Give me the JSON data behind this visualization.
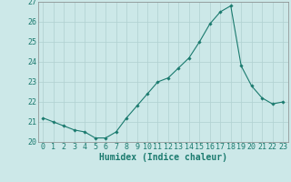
{
  "x": [
    0,
    1,
    2,
    3,
    4,
    5,
    6,
    7,
    8,
    9,
    10,
    11,
    12,
    13,
    14,
    15,
    16,
    17,
    18,
    19,
    20,
    21,
    22,
    23
  ],
  "y": [
    21.2,
    21.0,
    20.8,
    20.6,
    20.5,
    20.2,
    20.2,
    20.5,
    21.2,
    21.8,
    22.4,
    23.0,
    23.2,
    23.7,
    24.2,
    25.0,
    25.9,
    26.5,
    26.8,
    23.8,
    22.8,
    22.2,
    21.9,
    22.0
  ],
  "xlabel": "Humidex (Indice chaleur)",
  "ylim": [
    20,
    27
  ],
  "xlim": [
    -0.5,
    23.5
  ],
  "yticks": [
    20,
    21,
    22,
    23,
    24,
    25,
    26,
    27
  ],
  "xticks": [
    0,
    1,
    2,
    3,
    4,
    5,
    6,
    7,
    8,
    9,
    10,
    11,
    12,
    13,
    14,
    15,
    16,
    17,
    18,
    19,
    20,
    21,
    22,
    23
  ],
  "line_color": "#1a7a6e",
  "marker": "D",
  "marker_size": 1.8,
  "bg_color": "#cce8e8",
  "grid_color": "#b0d0d0",
  "xlabel_fontsize": 7,
  "tick_fontsize": 6,
  "label_color": "#1a7a6e"
}
